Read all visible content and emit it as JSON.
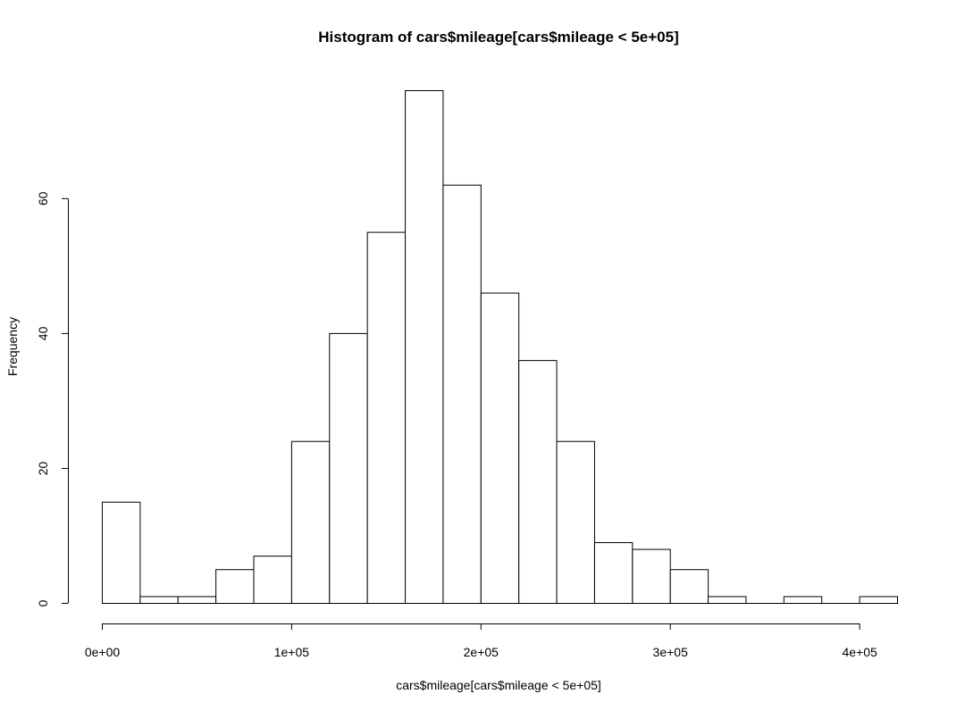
{
  "chart_data": {
    "type": "bar",
    "title": "Histogram of cars$mileage[cars$mileage < 5e+05]",
    "xlabel": "cars$mileage[cars$mileage < 5e+05]",
    "ylabel": "Frequency",
    "bin_edges": [
      0,
      20000,
      40000,
      60000,
      80000,
      100000,
      120000,
      140000,
      160000,
      180000,
      200000,
      220000,
      240000,
      260000,
      280000,
      300000,
      320000,
      340000,
      360000,
      380000,
      400000,
      420000
    ],
    "values": [
      15,
      1,
      1,
      5,
      7,
      24,
      40,
      55,
      76,
      62,
      46,
      36,
      24,
      9,
      8,
      5,
      1,
      0,
      1,
      0,
      1
    ],
    "xlim": [
      0,
      420000
    ],
    "ylim": [
      0,
      76
    ],
    "x_ticks": [
      0,
      100000,
      200000,
      300000,
      400000
    ],
    "x_tick_labels": [
      "0e+00",
      "1e+05",
      "2e+05",
      "3e+05",
      "4e+05"
    ],
    "y_ticks": [
      0,
      20,
      40,
      60
    ],
    "y_tick_labels": [
      "0",
      "20",
      "40",
      "60"
    ],
    "grid": false,
    "legend": "none"
  }
}
